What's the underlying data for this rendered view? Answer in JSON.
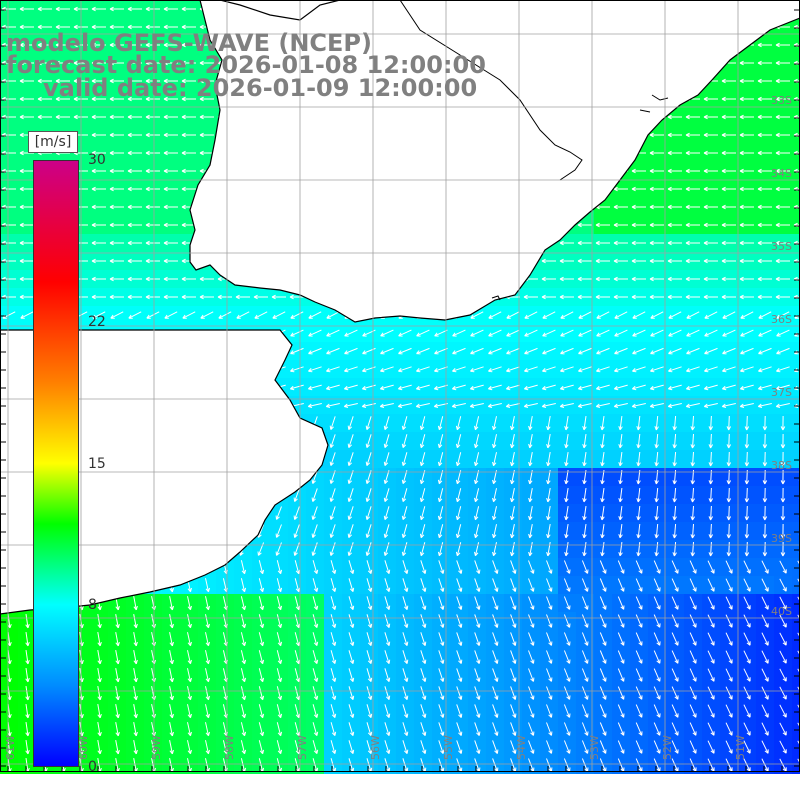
{
  "titles": {
    "model": "modelo GEFS-WAVE (NCEP)",
    "forecast": "forecast date: 2026-01-08 12:00:00",
    "valid": "valid date: 2026-01-09 12:00:00"
  },
  "colorbar": {
    "units": "[m/s]",
    "ticks": [
      "30",
      "22",
      "15",
      "8",
      "0"
    ],
    "tick_values": [
      30,
      22,
      15,
      8,
      0
    ],
    "range": [
      0,
      30
    ],
    "colors": [
      "#0000ff",
      "#008cff",
      "#00ffff",
      "#00ff00",
      "#ffff00",
      "#ff8000",
      "#ff0000",
      "#cc0088"
    ],
    "color_stops": [
      0,
      4,
      8,
      12,
      15,
      19,
      24,
      30
    ]
  },
  "map": {
    "lat_labels": [
      "33S",
      "34S",
      "35S",
      "36S",
      "37S",
      "38S",
      "39S",
      "40S"
    ],
    "lon_labels": [
      "61W",
      "60W",
      "59W",
      "58W",
      "57W",
      "56W",
      "55W",
      "54W",
      "53W",
      "52W",
      "51W"
    ],
    "lat_range": [
      -41,
      -31.5
    ],
    "lon_range": [
      -61,
      -50
    ],
    "grid": "1 degree",
    "colors": {
      "land": "#ffffff",
      "coastline": "#000000",
      "grid": "#a0a0a0",
      "labels": "#808080",
      "arrows": "#ffffff"
    }
  }
}
